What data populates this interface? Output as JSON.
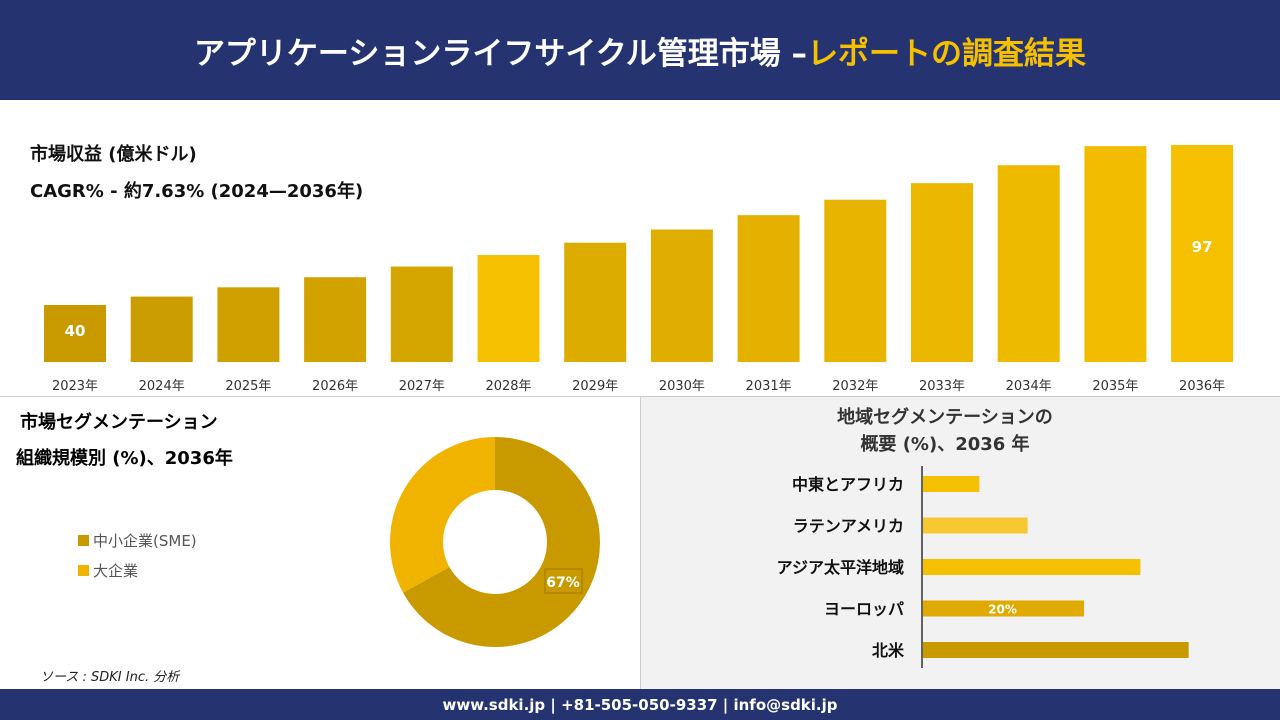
{
  "header": {
    "title_main": "アプリケーションライフサイクル管理市場 –",
    "title_highlight": "レポートの調査結果"
  },
  "revenue": {
    "title": "市場収益 (億米ドル)",
    "cagr": "CAGR% - 約7.63% (2024—2036年)"
  },
  "segmentation": {
    "title": "市場セグメンテーション",
    "subtitle": "組織規模別 (%)、2036年"
  },
  "regional": {
    "title_line1": "地域セグメンテーションの",
    "title_line2": "概要 (%)、2036 年"
  },
  "source": "ソース : SDKI Inc. 分析",
  "footer": "www.sdki.jp | +81-505-050-9337 | info@sdki.jp",
  "colors": {
    "header_bg": "#253470",
    "accent": "#f5c000",
    "dark_gold": "#c89a00",
    "gold": "#f0b400"
  },
  "chart_data": [
    {
      "type": "bar",
      "categories": [
        "2023年",
        "2024年",
        "2025年",
        "2026年",
        "2027年",
        "2028年",
        "2029年",
        "2030年",
        "2031年",
        "2032年",
        "2033年",
        "2034年",
        "2035年",
        "2036年"
      ],
      "values": [
        40,
        43,
        46.3,
        49.9,
        53.7,
        57.8,
        62.2,
        66.9,
        72,
        77.5,
        83.4,
        89.8,
        96.6,
        97
      ],
      "data_labels": {
        "0": "40",
        "13": "97"
      },
      "grid": false
    },
    {
      "type": "pie",
      "variant": "donut",
      "categories": [
        "中小企業(SME)",
        "大企業"
      ],
      "values": [
        67,
        33
      ],
      "data_labels": [
        "67%",
        ""
      ],
      "colors": [
        "#c89a00",
        "#f0b400"
      ],
      "legend": "left"
    },
    {
      "type": "bar",
      "orientation": "horizontal",
      "categories": [
        "中東とアフリカ",
        "ラテンアメリカ",
        "アジア太平洋地域",
        "ヨーロッパ",
        "北米"
      ],
      "values": [
        7,
        13,
        27,
        20,
        33
      ],
      "data_labels": [
        "",
        "",
        "",
        "20%",
        ""
      ],
      "colors": [
        "#f5c000",
        "#f8c832",
        "#f5c000",
        "#e0aa00",
        "#c89a00"
      ]
    }
  ]
}
